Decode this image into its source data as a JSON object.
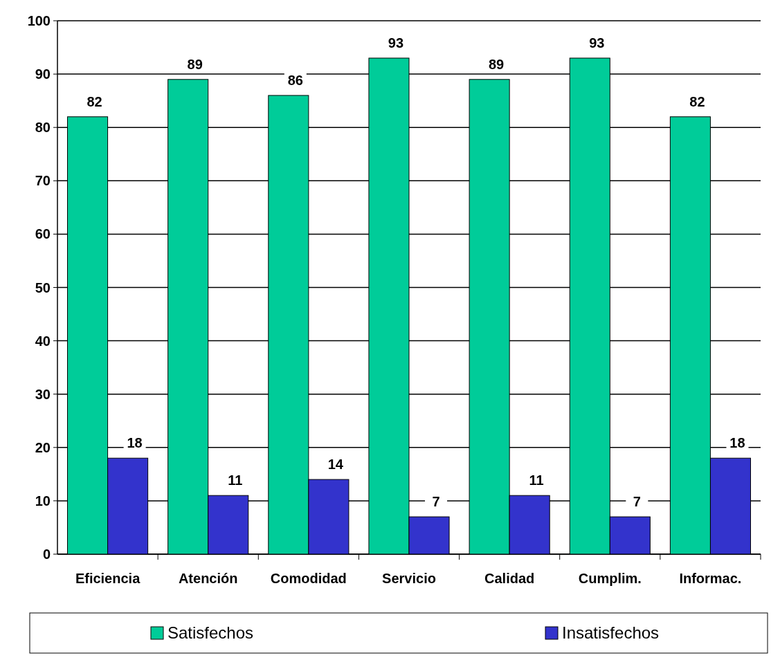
{
  "chart_data": {
    "type": "bar",
    "categories": [
      "Eficiencia",
      "Atención",
      "Comodidad",
      "Servicio",
      "Calidad",
      "Cumplim.",
      "Informac."
    ],
    "series": [
      {
        "name": "Satisfechos",
        "color": "#00cc99",
        "values": [
          82,
          89,
          86,
          93,
          89,
          93,
          82
        ]
      },
      {
        "name": "Insatisfechos",
        "color": "#3333cc",
        "values": [
          18,
          11,
          14,
          7,
          11,
          7,
          18
        ]
      }
    ],
    "ylim": [
      0,
      100
    ],
    "yticks": [
      0,
      10,
      20,
      30,
      40,
      50,
      60,
      70,
      80,
      90,
      100
    ],
    "grid": "y",
    "legend": "bottom",
    "data_labels": true
  }
}
